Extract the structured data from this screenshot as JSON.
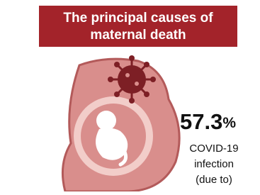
{
  "header": {
    "title_lines": [
      "The principal causes of",
      "maternal death"
    ]
  },
  "stat": {
    "value": "57.3",
    "unit": "%",
    "label_lines": [
      "COVID-19",
      "infection",
      "(due to)"
    ]
  }
}
